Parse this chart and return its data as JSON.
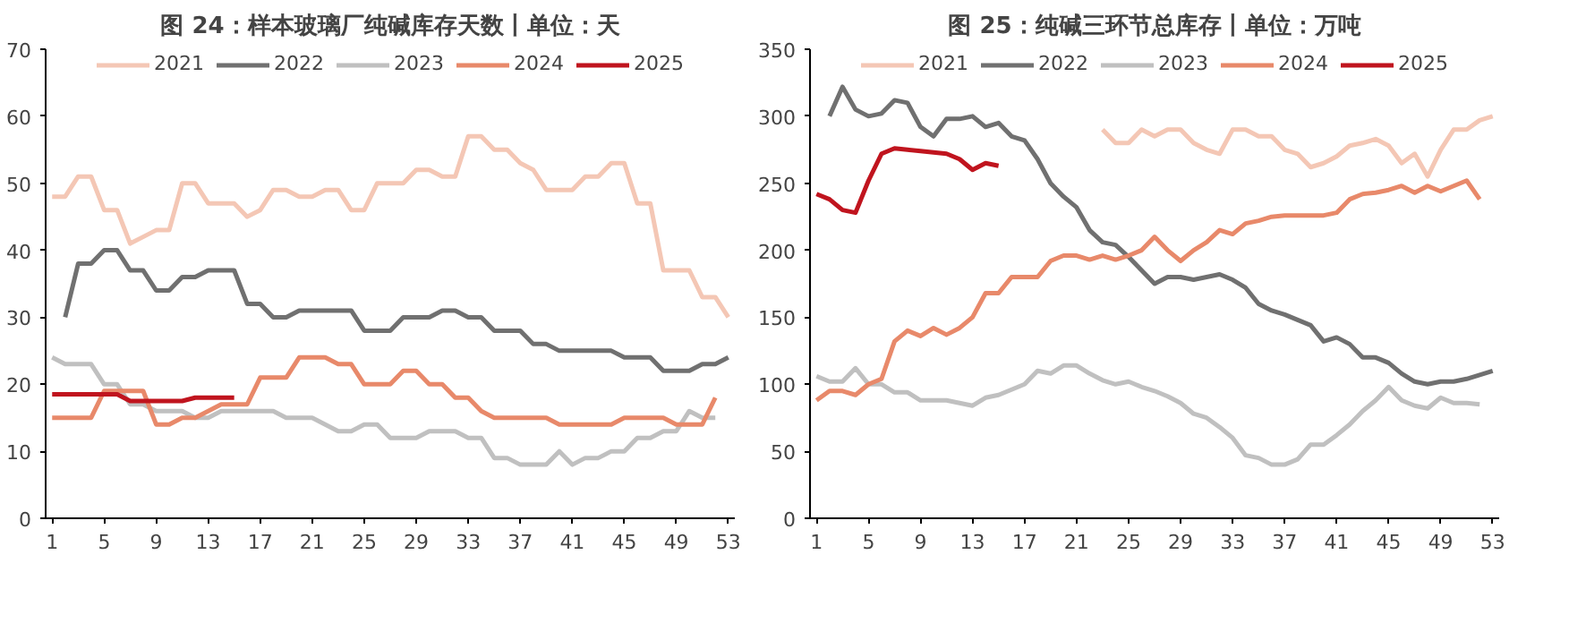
{
  "chart_data": [
    {
      "type": "line",
      "title": "图 24：样本玻璃厂纯碱库存天数丨单位：天",
      "xlim": [
        0.5,
        53.5
      ],
      "xticks": [
        1,
        5,
        9,
        13,
        17,
        21,
        25,
        29,
        33,
        37,
        41,
        45,
        49,
        53
      ],
      "ylim": [
        0,
        70
      ],
      "yticks": [
        0,
        10,
        20,
        30,
        40,
        50,
        60,
        70
      ],
      "grid": false,
      "legend": "top",
      "line_style": "solid",
      "marker": "none",
      "series": [
        {
          "name": "2021",
          "color": "#f4c7b5",
          "x": [
            1,
            2,
            3,
            4,
            5,
            6,
            7,
            8,
            9,
            10,
            11,
            12,
            13,
            14,
            15,
            16,
            17,
            18,
            19,
            20,
            21,
            22,
            23,
            24,
            25,
            26,
            27,
            28,
            29,
            30,
            31,
            32,
            33,
            34,
            35,
            36,
            37,
            38,
            39,
            40,
            41,
            42,
            43,
            44,
            45,
            46,
            47,
            48,
            49,
            50,
            51,
            52,
            53
          ],
          "values": [
            48,
            48,
            51,
            51,
            46,
            46,
            41,
            42,
            43,
            43,
            50,
            50,
            47,
            47,
            47,
            45,
            46,
            49,
            49,
            48,
            48,
            49,
            49,
            46,
            46,
            50,
            50,
            50,
            52,
            52,
            51,
            51,
            57,
            57,
            55,
            55,
            53,
            52,
            49,
            49,
            49,
            51,
            51,
            53,
            53,
            47,
            47,
            37,
            37,
            37,
            33,
            33,
            30
          ]
        },
        {
          "name": "2022",
          "color": "#707070",
          "x": [
            2,
            3,
            4,
            5,
            6,
            7,
            8,
            9,
            10,
            11,
            12,
            13,
            14,
            15,
            16,
            17,
            18,
            19,
            20,
            21,
            22,
            23,
            24,
            25,
            26,
            27,
            28,
            29,
            30,
            31,
            32,
            33,
            34,
            35,
            36,
            37,
            38,
            39,
            40,
            41,
            42,
            43,
            44,
            45,
            46,
            47,
            48,
            49,
            50,
            51,
            52,
            53
          ],
          "values": [
            30,
            38,
            38,
            40,
            40,
            37,
            37,
            34,
            34,
            36,
            36,
            37,
            37,
            37,
            32,
            32,
            30,
            30,
            31,
            31,
            31,
            31,
            31,
            28,
            28,
            28,
            30,
            30,
            30,
            31,
            31,
            30,
            30,
            28,
            28,
            28,
            26,
            26,
            25,
            25,
            25,
            25,
            25,
            24,
            24,
            24,
            22,
            22,
            22,
            23,
            23,
            24
          ]
        },
        {
          "name": "2023",
          "color": "#c0c0c0",
          "x": [
            1,
            2,
            3,
            4,
            5,
            6,
            7,
            8,
            9,
            10,
            11,
            12,
            13,
            14,
            15,
            16,
            17,
            18,
            19,
            20,
            21,
            22,
            23,
            24,
            25,
            26,
            27,
            28,
            29,
            30,
            31,
            32,
            33,
            34,
            35,
            36,
            37,
            38,
            39,
            40,
            41,
            42,
            43,
            44,
            45,
            46,
            47,
            48,
            49,
            50,
            51,
            52
          ],
          "values": [
            24,
            23,
            23,
            23,
            20,
            20,
            17,
            17,
            16,
            16,
            16,
            15,
            15,
            16,
            16,
            16,
            16,
            16,
            15,
            15,
            15,
            14,
            13,
            13,
            14,
            14,
            12,
            12,
            12,
            13,
            13,
            13,
            12,
            12,
            9,
            9,
            8,
            8,
            8,
            10,
            8,
            9,
            9,
            10,
            10,
            12,
            12,
            13,
            13,
            16,
            15,
            15
          ]
        },
        {
          "name": "2024",
          "color": "#e8896a",
          "x": [
            1,
            2,
            3,
            4,
            5,
            6,
            7,
            8,
            9,
            10,
            11,
            12,
            13,
            14,
            15,
            16,
            17,
            18,
            19,
            20,
            21,
            22,
            23,
            24,
            25,
            26,
            27,
            28,
            29,
            30,
            31,
            32,
            33,
            34,
            35,
            36,
            37,
            38,
            39,
            40,
            41,
            42,
            43,
            44,
            45,
            46,
            47,
            48,
            49,
            50,
            51,
            52
          ],
          "values": [
            15,
            15,
            15,
            15,
            19,
            19,
            19,
            19,
            14,
            14,
            15,
            15,
            16,
            17,
            17,
            17,
            21,
            21,
            21,
            24,
            24,
            24,
            23,
            23,
            20,
            20,
            20,
            22,
            22,
            20,
            20,
            18,
            18,
            16,
            15,
            15,
            15,
            15,
            15,
            14,
            14,
            14,
            14,
            14,
            15,
            15,
            15,
            15,
            14,
            14,
            14,
            18
          ]
        },
        {
          "name": "2025",
          "color": "#c0141e",
          "x": [
            1,
            2,
            3,
            4,
            5,
            6,
            7,
            8,
            9,
            10,
            11,
            12,
            13,
            14,
            15
          ],
          "values": [
            18.5,
            18.5,
            18.5,
            18.5,
            18.5,
            18.5,
            17.5,
            17.5,
            17.5,
            17.5,
            17.5,
            18,
            18,
            18,
            18
          ]
        }
      ]
    },
    {
      "type": "line",
      "title": "图 25：纯碱三环节总库存丨单位：万吨",
      "xlim": [
        0.5,
        53.5
      ],
      "xticks": [
        1,
        5,
        9,
        13,
        17,
        21,
        25,
        29,
        33,
        37,
        41,
        45,
        49,
        53
      ],
      "ylim": [
        0,
        350
      ],
      "yticks": [
        0,
        50,
        100,
        150,
        200,
        250,
        300,
        350
      ],
      "grid": false,
      "legend": "top",
      "line_style": "solid",
      "marker": "none",
      "series": [
        {
          "name": "2021",
          "color": "#f4c7b5",
          "x": [
            23,
            24,
            25,
            26,
            27,
            28,
            29,
            30,
            31,
            32,
            33,
            34,
            35,
            36,
            37,
            38,
            39,
            40,
            41,
            42,
            43,
            44,
            45,
            46,
            47,
            48,
            49,
            50,
            51,
            52,
            53
          ],
          "values": [
            290,
            280,
            280,
            290,
            285,
            290,
            290,
            280,
            275,
            272,
            290,
            290,
            285,
            285,
            275,
            272,
            262,
            265,
            270,
            278,
            280,
            283,
            278,
            265,
            272,
            255,
            275,
            290,
            290,
            297,
            300
          ]
        },
        {
          "name": "2022",
          "color": "#707070",
          "x": [
            2,
            3,
            4,
            5,
            6,
            7,
            8,
            9,
            10,
            11,
            12,
            13,
            14,
            15,
            16,
            17,
            18,
            19,
            20,
            21,
            22,
            23,
            24,
            25,
            26,
            27,
            28,
            29,
            30,
            31,
            32,
            33,
            34,
            35,
            36,
            37,
            38,
            39,
            40,
            41,
            42,
            43,
            44,
            45,
            46,
            47,
            48,
            49,
            50,
            51,
            52,
            53
          ],
          "values": [
            300,
            322,
            305,
            300,
            302,
            312,
            310,
            292,
            285,
            298,
            298,
            300,
            292,
            295,
            285,
            282,
            268,
            250,
            240,
            232,
            215,
            206,
            204,
            195,
            185,
            175,
            180,
            180,
            178,
            180,
            182,
            178,
            172,
            160,
            155,
            152,
            148,
            144,
            132,
            135,
            130,
            120,
            120,
            116,
            108,
            102,
            100,
            102,
            102,
            104,
            107,
            110
          ]
        },
        {
          "name": "2023",
          "color": "#c0c0c0",
          "x": [
            1,
            2,
            3,
            4,
            5,
            6,
            7,
            8,
            9,
            10,
            11,
            12,
            13,
            14,
            15,
            16,
            17,
            18,
            19,
            20,
            21,
            22,
            23,
            24,
            25,
            26,
            27,
            28,
            29,
            30,
            31,
            32,
            33,
            34,
            35,
            36,
            37,
            38,
            39,
            40,
            41,
            42,
            43,
            44,
            45,
            46,
            47,
            48,
            49,
            50,
            51,
            52
          ],
          "values": [
            106,
            102,
            102,
            112,
            100,
            100,
            94,
            94,
            88,
            88,
            88,
            86,
            84,
            90,
            92,
            96,
            100,
            110,
            108,
            114,
            114,
            108,
            103,
            100,
            102,
            98,
            95,
            91,
            86,
            78,
            75,
            68,
            60,
            47,
            45,
            40,
            40,
            44,
            55,
            55,
            62,
            70,
            80,
            88,
            98,
            88,
            84,
            82,
            90,
            86,
            86,
            85
          ]
        },
        {
          "name": "2024",
          "color": "#e8896a",
          "x": [
            1,
            2,
            3,
            4,
            5,
            6,
            7,
            8,
            9,
            10,
            11,
            12,
            13,
            14,
            15,
            16,
            17,
            18,
            19,
            20,
            21,
            22,
            23,
            24,
            25,
            26,
            27,
            28,
            29,
            30,
            31,
            32,
            33,
            34,
            35,
            36,
            37,
            38,
            39,
            40,
            41,
            42,
            43,
            44,
            45,
            46,
            47,
            48,
            49,
            50,
            51,
            52
          ],
          "values": [
            88,
            95,
            95,
            92,
            100,
            104,
            132,
            140,
            136,
            142,
            137,
            142,
            150,
            168,
            168,
            180,
            180,
            180,
            192,
            196,
            196,
            193,
            196,
            193,
            196,
            200,
            210,
            200,
            192,
            200,
            206,
            215,
            212,
            220,
            222,
            225,
            226,
            226,
            226,
            226,
            228,
            238,
            242,
            243,
            245,
            248,
            243,
            248,
            244,
            248,
            252,
            238
          ]
        },
        {
          "name": "2025",
          "color": "#c0141e",
          "x": [
            1,
            2,
            3,
            4,
            5,
            6,
            7,
            8,
            9,
            10,
            11,
            12,
            13,
            14,
            15
          ],
          "values": [
            242,
            238,
            230,
            228,
            252,
            272,
            276,
            275,
            274,
            273,
            272,
            268,
            260,
            265,
            263
          ]
        }
      ]
    }
  ]
}
